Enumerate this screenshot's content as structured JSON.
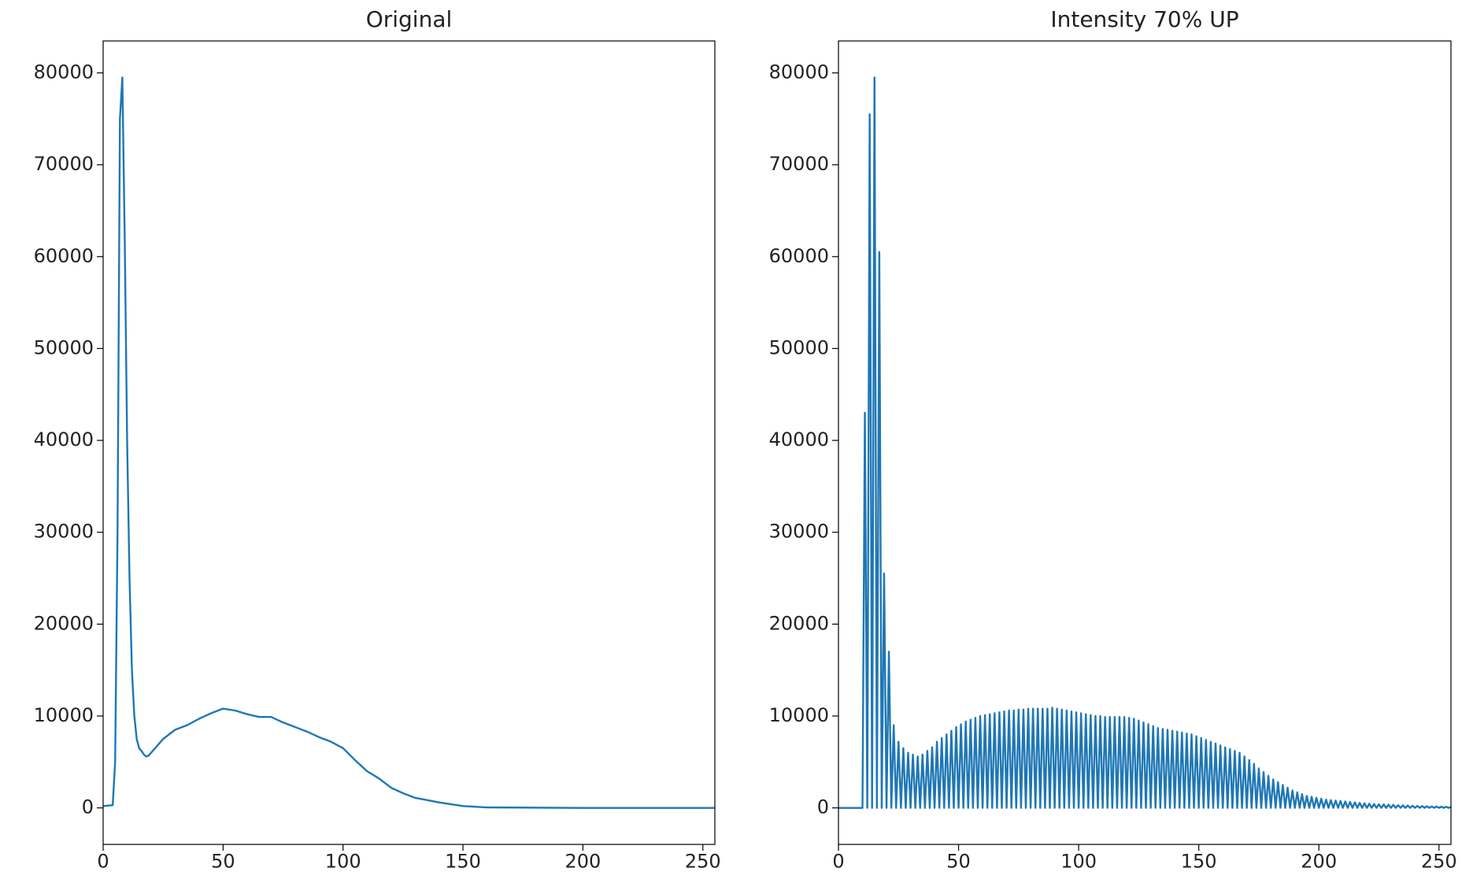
{
  "chart_data": [
    {
      "type": "line",
      "title": "Original",
      "color": "#1f77b4",
      "x": [
        0,
        4,
        5,
        6,
        7,
        8,
        9,
        10,
        11,
        12,
        13,
        14,
        15,
        16,
        17,
        18,
        19,
        20,
        25,
        30,
        35,
        40,
        45,
        50,
        55,
        60,
        65,
        70,
        75,
        80,
        85,
        90,
        95,
        100,
        105,
        110,
        115,
        120,
        125,
        130,
        140,
        150,
        160,
        200,
        255
      ],
      "values": [
        200,
        300,
        5000,
        30000,
        75000,
        79500,
        62000,
        40000,
        25000,
        15000,
        10000,
        7500,
        6500,
        6200,
        5800,
        5600,
        5700,
        6000,
        7500,
        8500,
        9000,
        9700,
        10300,
        10800,
        10600,
        10200,
        9900,
        9900,
        9300,
        8800,
        8300,
        7700,
        7200,
        6500,
        5200,
        4000,
        3200,
        2200,
        1600,
        1100,
        600,
        200,
        50,
        0,
        0
      ],
      "xlim": [
        0,
        255
      ],
      "xticks": [
        0,
        50,
        100,
        150,
        200,
        250
      ],
      "ylim": [
        -3975,
        83475
      ],
      "yticks": [
        0,
        10000,
        20000,
        30000,
        40000,
        50000,
        60000,
        70000,
        80000
      ]
    },
    {
      "type": "line",
      "title": "Intensity 70% UP",
      "color": "#1f77b4",
      "x": [
        0,
        1,
        2,
        3,
        4,
        5,
        6,
        7,
        8,
        9,
        10,
        11,
        12,
        13,
        14,
        15,
        16,
        17,
        18,
        19,
        20,
        21,
        22,
        23,
        24,
        25,
        26,
        27,
        28,
        29,
        30,
        31,
        32,
        33,
        34,
        35,
        36,
        37,
        38,
        39,
        40,
        41,
        42,
        43,
        44,
        45,
        46,
        47,
        48,
        49,
        50,
        51,
        52,
        53,
        54,
        55,
        56,
        57,
        58,
        59,
        60,
        61,
        62,
        63,
        64,
        65,
        66,
        67,
        68,
        69,
        70,
        71,
        72,
        73,
        74,
        75,
        76,
        77,
        78,
        79,
        80,
        81,
        82,
        83,
        84,
        85,
        86,
        87,
        88,
        89,
        90,
        91,
        92,
        93,
        94,
        95,
        96,
        97,
        98,
        99,
        100,
        101,
        102,
        103,
        104,
        105,
        106,
        107,
        108,
        109,
        110,
        111,
        112,
        113,
        114,
        115,
        116,
        117,
        118,
        119,
        120,
        121,
        122,
        123,
        124,
        125,
        126,
        127,
        128,
        129,
        130,
        131,
        132,
        133,
        134,
        135,
        136,
        137,
        138,
        139,
        140,
        141,
        142,
        143,
        144,
        145,
        146,
        147,
        148,
        149,
        150,
        151,
        152,
        153,
        154,
        155,
        156,
        157,
        158,
        159,
        160,
        161,
        162,
        163,
        164,
        165,
        166,
        167,
        168,
        169,
        170,
        171,
        172,
        173,
        174,
        175,
        176,
        177,
        178,
        179,
        180,
        181,
        182,
        183,
        184,
        185,
        186,
        187,
        188,
        189,
        190,
        191,
        192,
        193,
        194,
        195,
        196,
        197,
        198,
        199,
        200,
        201,
        202,
        203,
        204,
        205,
        206,
        207,
        208,
        209,
        210,
        211,
        212,
        213,
        214,
        215,
        216,
        217,
        218,
        219,
        220,
        221,
        222,
        223,
        224,
        225,
        226,
        227,
        228,
        229,
        230,
        231,
        232,
        233,
        234,
        235,
        236,
        237,
        238,
        239,
        240,
        241,
        242,
        243,
        244,
        245,
        246,
        247,
        248,
        249,
        250,
        251,
        252,
        253,
        254,
        255
      ],
      "values": [
        0,
        0,
        0,
        0,
        0,
        0,
        0,
        0,
        0,
        0,
        0,
        43000,
        0,
        75500,
        0,
        79500,
        0,
        60500,
        0,
        25500,
        0,
        17000,
        0,
        9000,
        0,
        7200,
        0,
        6500,
        0,
        6000,
        0,
        5800,
        0,
        5600,
        0,
        5800,
        0,
        6200,
        0,
        6600,
        0,
        7200,
        0,
        7600,
        0,
        8000,
        0,
        8400,
        0,
        8800,
        0,
        9100,
        0,
        9400,
        0,
        9600,
        0,
        9800,
        0,
        10000,
        0,
        10100,
        0,
        10200,
        0,
        10300,
        0,
        10400,
        0,
        10500,
        0,
        10600,
        0,
        10600,
        0,
        10700,
        0,
        10700,
        0,
        10800,
        0,
        10800,
        0,
        10800,
        0,
        10800,
        0,
        10800,
        0,
        10900,
        0,
        10800,
        0,
        10700,
        0,
        10600,
        0,
        10500,
        0,
        10400,
        0,
        10300,
        0,
        10200,
        0,
        10100,
        0,
        10000,
        0,
        10000,
        0,
        9900,
        0,
        9900,
        0,
        9900,
        0,
        9900,
        0,
        9900,
        0,
        9800,
        0,
        9700,
        0,
        9500,
        0,
        9300,
        0,
        9100,
        0,
        8900,
        0,
        8700,
        0,
        8600,
        0,
        8500,
        0,
        8400,
        0,
        8300,
        0,
        8200,
        0,
        8100,
        0,
        8000,
        0,
        7800,
        0,
        7600,
        0,
        7400,
        0,
        7200,
        0,
        7000,
        0,
        6800,
        0,
        6600,
        0,
        6400,
        0,
        6200,
        0,
        6000,
        0,
        5600,
        0,
        5200,
        0,
        4800,
        0,
        4300,
        0,
        3900,
        0,
        3500,
        0,
        3100,
        0,
        2800,
        0,
        2500,
        0,
        2200,
        0,
        1900,
        0,
        1700,
        0,
        1500,
        0,
        1300,
        0,
        1200,
        0,
        1100,
        0,
        1000,
        0,
        900,
        0,
        850,
        0,
        800,
        0,
        750,
        0,
        700,
        0,
        650,
        0,
        600,
        0,
        550,
        0,
        500,
        0,
        450,
        0,
        420,
        0,
        400,
        0,
        380,
        0,
        350,
        0,
        330,
        0,
        300,
        0,
        280,
        0,
        260,
        0,
        240,
        0,
        220,
        0,
        200,
        0,
        180,
        0,
        160,
        0,
        150,
        0,
        130,
        0,
        120,
        0,
        100
      ],
      "xlim": [
        0,
        255
      ],
      "xticks": [
        0,
        50,
        100,
        150,
        200,
        250
      ],
      "ylim": [
        -3975,
        83475
      ],
      "yticks": [
        0,
        10000,
        20000,
        30000,
        40000,
        50000,
        60000,
        70000,
        80000
      ]
    }
  ]
}
